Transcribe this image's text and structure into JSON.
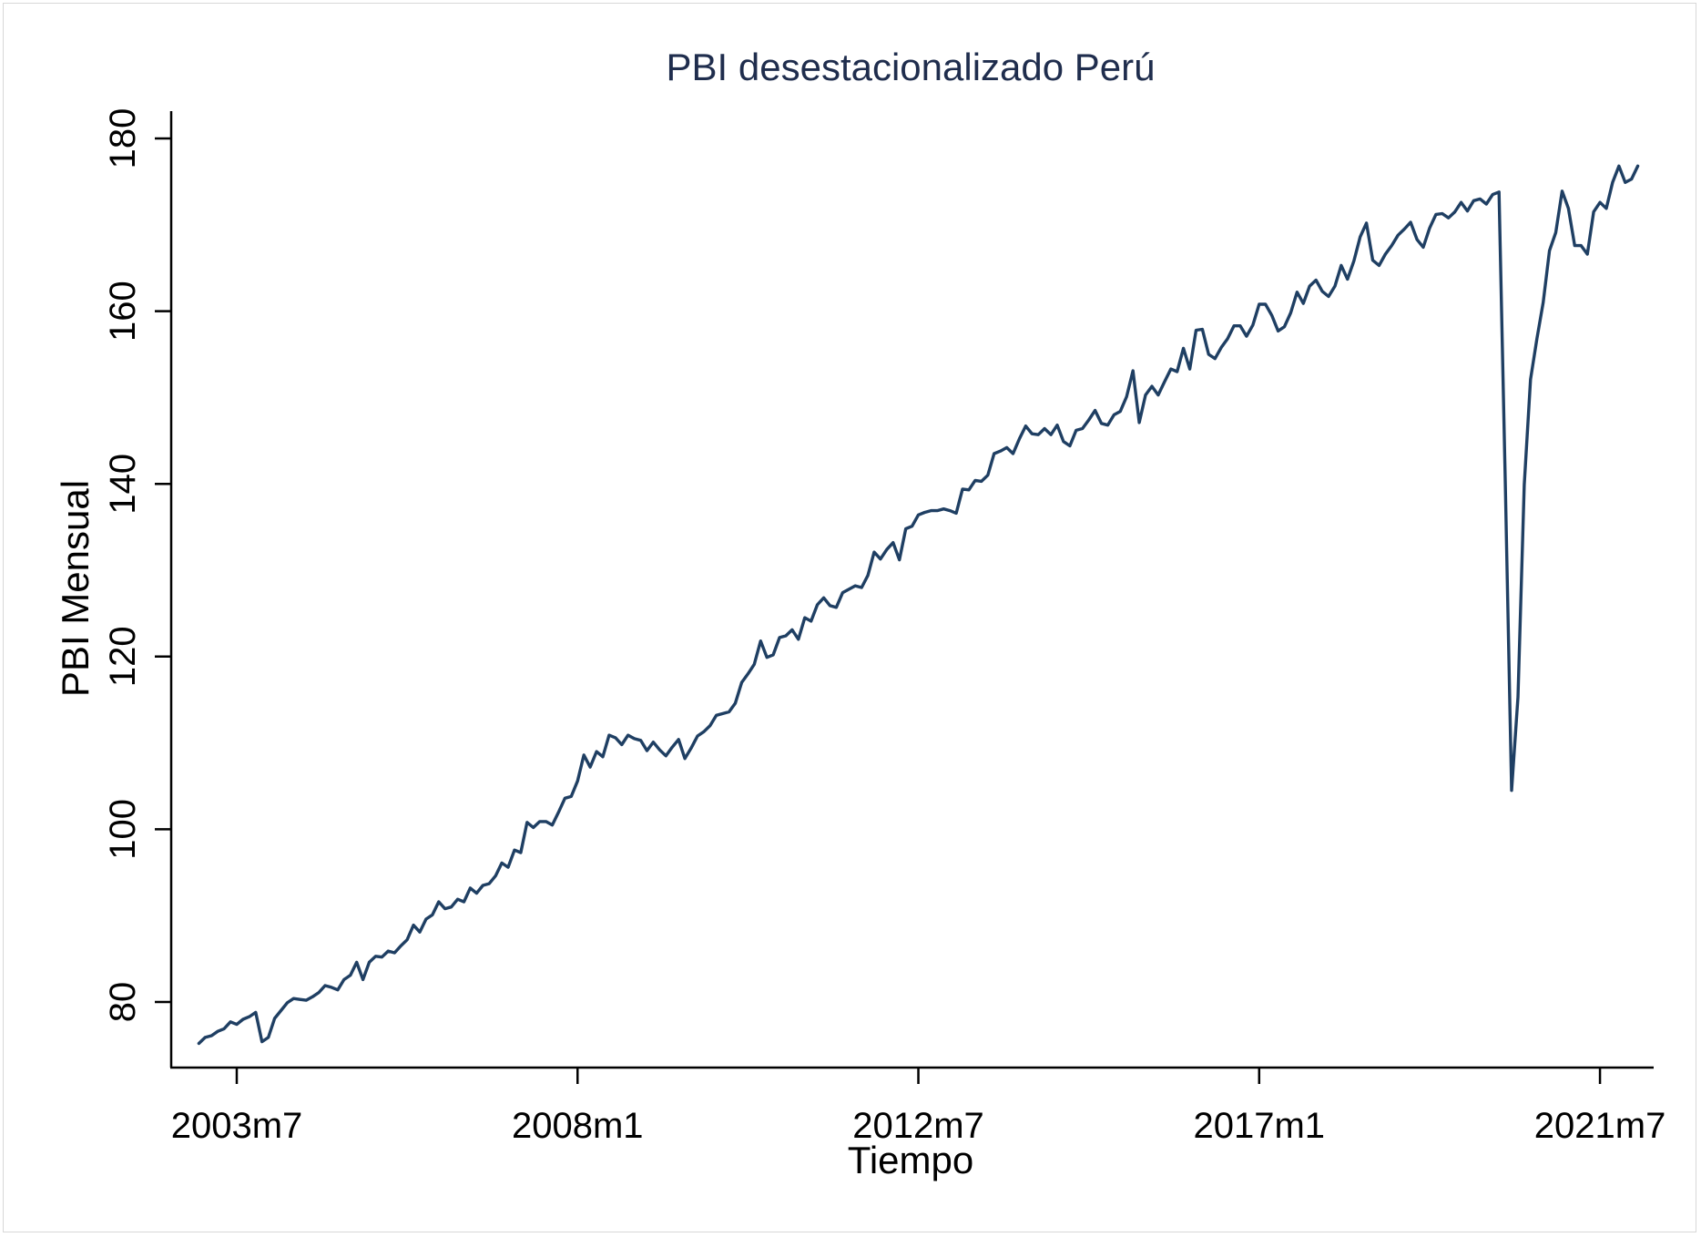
{
  "chart_data": {
    "type": "line",
    "title": "PBI desestacionalizado Perú",
    "xlabel": "Tiempo",
    "ylabel": "PBI Mensual",
    "ylim": [
      72,
      182
    ],
    "y_ticks": [
      80,
      100,
      120,
      140,
      160,
      180
    ],
    "x_ticks": [
      {
        "label": "2003m7",
        "t": 2003.5
      },
      {
        "label": "2008m1",
        "t": 2008.0
      },
      {
        "label": "2012m7",
        "t": 2012.5
      },
      {
        "label": "2017m1",
        "t": 2017.0
      },
      {
        "label": "2021m7",
        "t": 2021.5
      }
    ],
    "x_start": "2003m1",
    "line_color": "#1f3f63",
    "grid": false,
    "series": [
      {
        "values": [
          75.2,
          75.9,
          76.1,
          76.6,
          76.9,
          77.7,
          77.4,
          78.0,
          78.3,
          78.8,
          75.4,
          75.9,
          78.1,
          79.0,
          79.9,
          80.4,
          80.3,
          80.2,
          80.6,
          81.1,
          81.9,
          81.7,
          81.4,
          82.6,
          83.1,
          84.6,
          82.6,
          84.6,
          85.3,
          85.2,
          85.9,
          85.7,
          86.5,
          87.2,
          88.9,
          88.1,
          89.6,
          90.1,
          91.6,
          90.8,
          91.0,
          91.9,
          91.6,
          93.2,
          92.6,
          93.5,
          93.7,
          94.6,
          96.1,
          95.6,
          97.6,
          97.3,
          100.8,
          100.2,
          100.9,
          100.9,
          100.5,
          102.0,
          103.6,
          103.8,
          105.6,
          108.6,
          107.2,
          109.0,
          108.4,
          110.9,
          110.6,
          109.8,
          110.9,
          110.5,
          110.3,
          109.1,
          110.1,
          109.2,
          108.5,
          109.5,
          110.4,
          108.2,
          109.4,
          110.8,
          111.3,
          112.0,
          113.2,
          113.4,
          113.6,
          114.6,
          117.0,
          118.0,
          119.1,
          121.8,
          119.9,
          120.2,
          122.2,
          122.4,
          123.1,
          122.0,
          124.5,
          124.1,
          126.0,
          126.8,
          125.9,
          125.7,
          127.4,
          127.8,
          128.2,
          128.0,
          129.4,
          132.1,
          131.3,
          132.4,
          133.2,
          131.2,
          134.8,
          135.1,
          136.4,
          136.7,
          136.9,
          136.9,
          137.1,
          136.9,
          136.6,
          139.4,
          139.3,
          140.4,
          140.3,
          141.0,
          143.5,
          143.8,
          144.2,
          143.5,
          145.2,
          146.7,
          145.8,
          145.7,
          146.4,
          145.7,
          146.8,
          144.9,
          144.4,
          146.2,
          146.4,
          147.4,
          148.5,
          147.0,
          146.8,
          148.0,
          148.4,
          150.1,
          153.1,
          147.1,
          150.3,
          151.3,
          150.3,
          151.8,
          153.3,
          153.0,
          155.7,
          153.3,
          157.8,
          157.9,
          155.0,
          154.5,
          155.8,
          156.8,
          158.3,
          158.3,
          157.1,
          158.4,
          160.8,
          160.8,
          159.5,
          157.7,
          158.2,
          159.8,
          162.2,
          160.9,
          162.9,
          163.6,
          162.3,
          161.7,
          162.9,
          165.3,
          163.7,
          165.8,
          168.6,
          170.2,
          165.9,
          165.3,
          166.6,
          167.6,
          168.8,
          169.5,
          170.3,
          168.3,
          167.4,
          169.6,
          171.2,
          171.3,
          170.8,
          171.5,
          172.6,
          171.6,
          172.8,
          173.0,
          172.4,
          173.5,
          173.8,
          140.0,
          104.5,
          115.3,
          139.9,
          152.1,
          156.8,
          161.0,
          167.0,
          169.1,
          173.9,
          171.9,
          167.6,
          167.6,
          166.6,
          171.5,
          172.6,
          171.9,
          174.9,
          176.8,
          174.9,
          175.3,
          176.8
        ]
      }
    ]
  }
}
